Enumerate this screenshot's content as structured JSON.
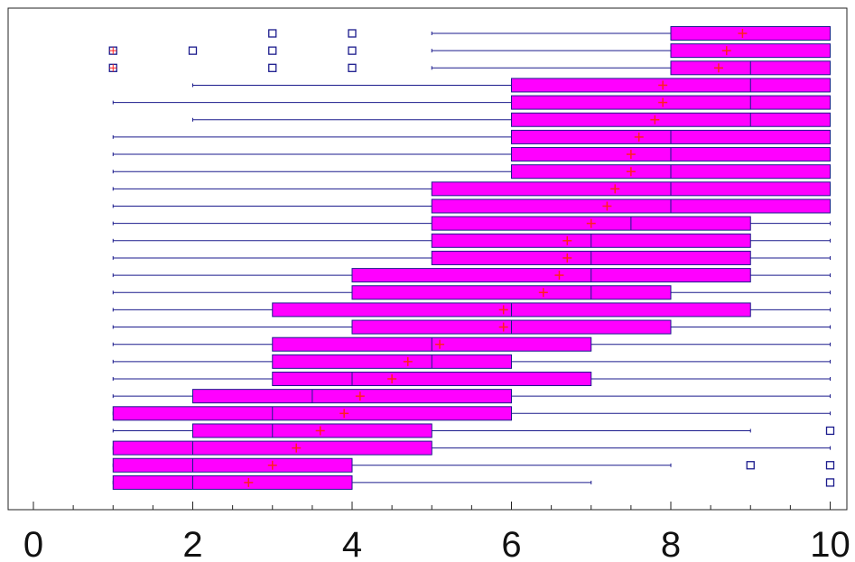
{
  "chart_data": {
    "type": "boxplot",
    "orientation": "horizontal",
    "xlim": [
      -0.4,
      10.3
    ],
    "x_ticks": [
      {
        "value": 0,
        "label": "0"
      },
      {
        "value": 2,
        "label": "2"
      },
      {
        "value": 4,
        "label": "4"
      },
      {
        "value": 6,
        "label": "6"
      },
      {
        "value": 8,
        "label": "8"
      },
      {
        "value": 10,
        "label": "10"
      }
    ],
    "minor_tick_step": 0.5,
    "colors": {
      "box_fill": "#ff00ff",
      "line": "#1a1a8c",
      "mean_marker": "#ff2020",
      "outlier": "#1a1a8c"
    },
    "boxes": [
      {
        "whisker_low": 5,
        "q1": 8,
        "median": 8,
        "q3": 10,
        "whisker_high": 10,
        "mean": 8.9,
        "outliers": [
          3,
          4
        ],
        "outliers_far": []
      },
      {
        "whisker_low": 5,
        "q1": 8,
        "median": 8,
        "q3": 10,
        "whisker_high": 10,
        "mean": 8.7,
        "outliers": [
          2,
          3,
          4
        ],
        "outliers_far": [
          1
        ]
      },
      {
        "whisker_low": 5,
        "q1": 8,
        "median": 9,
        "q3": 10,
        "whisker_high": 10,
        "mean": 8.6,
        "outliers": [
          3,
          4
        ],
        "outliers_far": [
          1
        ]
      },
      {
        "whisker_low": 2,
        "q1": 6,
        "median": 9,
        "q3": 10,
        "whisker_high": 10,
        "mean": 7.9,
        "outliers": [],
        "outliers_far": []
      },
      {
        "whisker_low": 1,
        "q1": 6,
        "median": 9,
        "q3": 10,
        "whisker_high": 10,
        "mean": 7.9,
        "outliers": [],
        "outliers_far": []
      },
      {
        "whisker_low": 2,
        "q1": 6,
        "median": 9,
        "q3": 10,
        "whisker_high": 10,
        "mean": 7.8,
        "outliers": [],
        "outliers_far": []
      },
      {
        "whisker_low": 1,
        "q1": 6,
        "median": 8,
        "q3": 10,
        "whisker_high": 10,
        "mean": 7.6,
        "outliers": [],
        "outliers_far": []
      },
      {
        "whisker_low": 1,
        "q1": 6,
        "median": 8,
        "q3": 10,
        "whisker_high": 10,
        "mean": 7.5,
        "outliers": [],
        "outliers_far": []
      },
      {
        "whisker_low": 1,
        "q1": 6,
        "median": 8,
        "q3": 10,
        "whisker_high": 10,
        "mean": 7.5,
        "outliers": [],
        "outliers_far": []
      },
      {
        "whisker_low": 1,
        "q1": 5,
        "median": 8,
        "q3": 10,
        "whisker_high": 10,
        "mean": 7.3,
        "outliers": [],
        "outliers_far": []
      },
      {
        "whisker_low": 1,
        "q1": 5,
        "median": 8,
        "q3": 10,
        "whisker_high": 10,
        "mean": 7.2,
        "outliers": [],
        "outliers_far": []
      },
      {
        "whisker_low": 1,
        "q1": 5,
        "median": 7.5,
        "q3": 9,
        "whisker_high": 10,
        "mean": 7.0,
        "outliers": [],
        "outliers_far": []
      },
      {
        "whisker_low": 1,
        "q1": 5,
        "median": 7,
        "q3": 9,
        "whisker_high": 10,
        "mean": 6.7,
        "outliers": [],
        "outliers_far": []
      },
      {
        "whisker_low": 1,
        "q1": 5,
        "median": 7,
        "q3": 9,
        "whisker_high": 10,
        "mean": 6.7,
        "outliers": [],
        "outliers_far": []
      },
      {
        "whisker_low": 1,
        "q1": 4,
        "median": 7,
        "q3": 9,
        "whisker_high": 10,
        "mean": 6.6,
        "outliers": [],
        "outliers_far": []
      },
      {
        "whisker_low": 1,
        "q1": 4,
        "median": 7,
        "q3": 8,
        "whisker_high": 10,
        "mean": 6.4,
        "outliers": [],
        "outliers_far": []
      },
      {
        "whisker_low": 1,
        "q1": 3,
        "median": 6,
        "q3": 9,
        "whisker_high": 10,
        "mean": 5.9,
        "outliers": [],
        "outliers_far": []
      },
      {
        "whisker_low": 1,
        "q1": 4,
        "median": 6,
        "q3": 8,
        "whisker_high": 10,
        "mean": 5.9,
        "outliers": [],
        "outliers_far": []
      },
      {
        "whisker_low": 1,
        "q1": 3,
        "median": 5,
        "q3": 7,
        "whisker_high": 10,
        "mean": 5.1,
        "outliers": [],
        "outliers_far": []
      },
      {
        "whisker_low": 1,
        "q1": 3,
        "median": 5,
        "q3": 6,
        "whisker_high": 10,
        "mean": 4.7,
        "outliers": [],
        "outliers_far": []
      },
      {
        "whisker_low": 1,
        "q1": 3,
        "median": 4,
        "q3": 7,
        "whisker_high": 10,
        "mean": 4.5,
        "outliers": [],
        "outliers_far": []
      },
      {
        "whisker_low": 1,
        "q1": 2,
        "median": 3.5,
        "q3": 6,
        "whisker_high": 10,
        "mean": 4.1,
        "outliers": [],
        "outliers_far": []
      },
      {
        "whisker_low": 1,
        "q1": 1,
        "median": 3,
        "q3": 6,
        "whisker_high": 10,
        "mean": 3.9,
        "outliers": [],
        "outliers_far": []
      },
      {
        "whisker_low": 1,
        "q1": 2,
        "median": 3,
        "q3": 5,
        "whisker_high": 9,
        "mean": 3.6,
        "outliers": [
          10
        ],
        "outliers_far": []
      },
      {
        "whisker_low": 1,
        "q1": 1,
        "median": 2,
        "q3": 5,
        "whisker_high": 10,
        "mean": 3.3,
        "outliers": [],
        "outliers_far": []
      },
      {
        "whisker_low": 1,
        "q1": 1,
        "median": 2,
        "q3": 4,
        "whisker_high": 8,
        "mean": 3.0,
        "outliers": [
          9,
          10
        ],
        "outliers_far": []
      },
      {
        "whisker_low": 1,
        "q1": 1,
        "median": 2,
        "q3": 4,
        "whisker_high": 7,
        "mean": 2.7,
        "outliers": [
          10
        ],
        "outliers_far": []
      }
    ]
  }
}
